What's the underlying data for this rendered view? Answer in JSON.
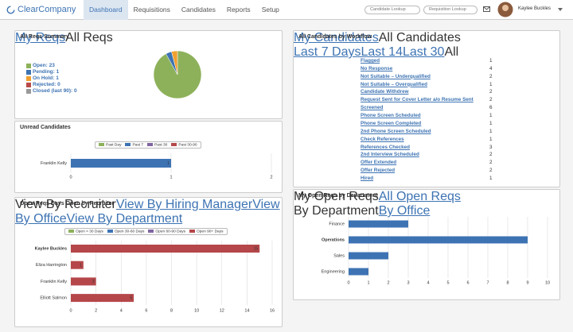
{
  "header": {
    "logo": "ClearCompany",
    "nav": [
      "Dashboard",
      "Requisitions",
      "Candidates",
      "Reports",
      "Setup"
    ],
    "search": [
      "Candidate Lookup",
      "Requisition Lookup"
    ],
    "user": "Kaylee Buckles"
  },
  "reqs_summary": {
    "title": "All Reqs Summary",
    "links": [
      "My Reqs",
      "All Reqs"
    ],
    "chart": {
      "type": "pie",
      "labels": [
        "Open: 23",
        "Pending: 1",
        "On Hold: 1",
        "Rejected: 0",
        "Closed (last 90): 0"
      ],
      "values": [
        23,
        1,
        1,
        0,
        0
      ],
      "colors": [
        "#8db15a",
        "#3d73b3",
        "#f0a030",
        "#b94a48",
        "#999999"
      ]
    }
  },
  "unread_candidates": {
    "title": "Unread Candidates",
    "chart": {
      "type": "bar",
      "orientation": "horizontal",
      "categories": [
        "Franklin Kelly"
      ],
      "series": [
        {
          "name": "Past Day",
          "color": "#8db15a",
          "values": [
            null
          ]
        },
        {
          "name": "Past 7",
          "color": "#3d73b3",
          "values": [
            1
          ]
        },
        {
          "name": "Past 30",
          "color": "#8064a2",
          "values": [
            null
          ]
        },
        {
          "name": "Past 30-90",
          "color": "#b5474a",
          "values": [
            null
          ]
        }
      ],
      "xlim": [
        0,
        2
      ],
      "xticks": [
        0,
        1,
        2
      ],
      "data_labels": true,
      "grid": true
    }
  },
  "open_reqs": {
    "title": "Open Reqs Days Open by Recruiter",
    "links": [
      "View By Recruiter",
      "View By Hiring Manager",
      "View By Office",
      "View By Department"
    ],
    "chart": {
      "type": "bar",
      "orientation": "horizontal",
      "categories": [
        "Kaylee Buckles",
        "Eliza Harrington",
        "Franklin Kelly",
        "Elliott Salmon"
      ],
      "series": [
        {
          "name": "Open < 30 Days",
          "color": "#8db15a",
          "values": [
            null,
            null,
            null,
            null
          ]
        },
        {
          "name": "Open 30-60 Days",
          "color": "#3d73b3",
          "values": [
            null,
            null,
            null,
            null
          ]
        },
        {
          "name": "Open 60-90 Days",
          "color": "#8064a2",
          "values": [
            null,
            null,
            null,
            null
          ]
        },
        {
          "name": "Open 90+ Days",
          "color": "#b5474a",
          "values": [
            15,
            1,
            2,
            5
          ]
        }
      ],
      "xlim": [
        0,
        16
      ],
      "xticks": [
        0,
        2,
        4,
        6,
        8,
        10,
        12,
        14,
        16
      ],
      "data_labels": true,
      "grid": true
    }
  },
  "workflow": {
    "title": "All Candidates by Workflow",
    "links": [
      "My Candidates",
      "All Candidates"
    ],
    "periods": [
      "Last 7 Days",
      "Last 14",
      "Last 30",
      "All"
    ],
    "rows": [
      {
        "label": "Flagged",
        "count": 1
      },
      {
        "label": "No Response",
        "count": 4
      },
      {
        "label": "Not Suitable – Underqualified",
        "count": 2
      },
      {
        "label": "Not Suitable – Overqualified",
        "count": 1
      },
      {
        "label": "Candidate Withdrew",
        "count": 2
      },
      {
        "label": "Request Sent for Cover Letter a/o Resume Sent",
        "count": 2
      },
      {
        "label": "Screened",
        "count": 6
      },
      {
        "label": "Phone Screen Scheduled",
        "count": 1
      },
      {
        "label": "Phone Screen Completed",
        "count": 1
      },
      {
        "label": "2nd Phone Screen Scheduled",
        "count": 1
      },
      {
        "label": "Check References",
        "count": 1
      },
      {
        "label": "References Checked",
        "count": 3
      },
      {
        "label": "2nd Interview Scheduled",
        "count": 2
      },
      {
        "label": "Offer Extended",
        "count": 2
      },
      {
        "label": "Offer Rejected",
        "count": 2
      },
      {
        "label": "Hired",
        "count": 1
      }
    ]
  },
  "department": {
    "title": "My Open Reqs by Department",
    "links": [
      "My Open Reqs",
      "All Open Reqs"
    ],
    "views": [
      "By Department",
      "By Office"
    ],
    "chart": {
      "type": "bar",
      "orientation": "horizontal",
      "categories": [
        "Finance",
        "Operations",
        "Sales",
        "Engineering"
      ],
      "values": [
        3,
        9,
        2,
        1
      ],
      "color": "#3d73b3",
      "xlim": [
        0,
        10
      ],
      "xticks": [
        0,
        1,
        2,
        3,
        4,
        5,
        6,
        7,
        8,
        9,
        10
      ],
      "data_labels": false,
      "grid": true
    }
  }
}
